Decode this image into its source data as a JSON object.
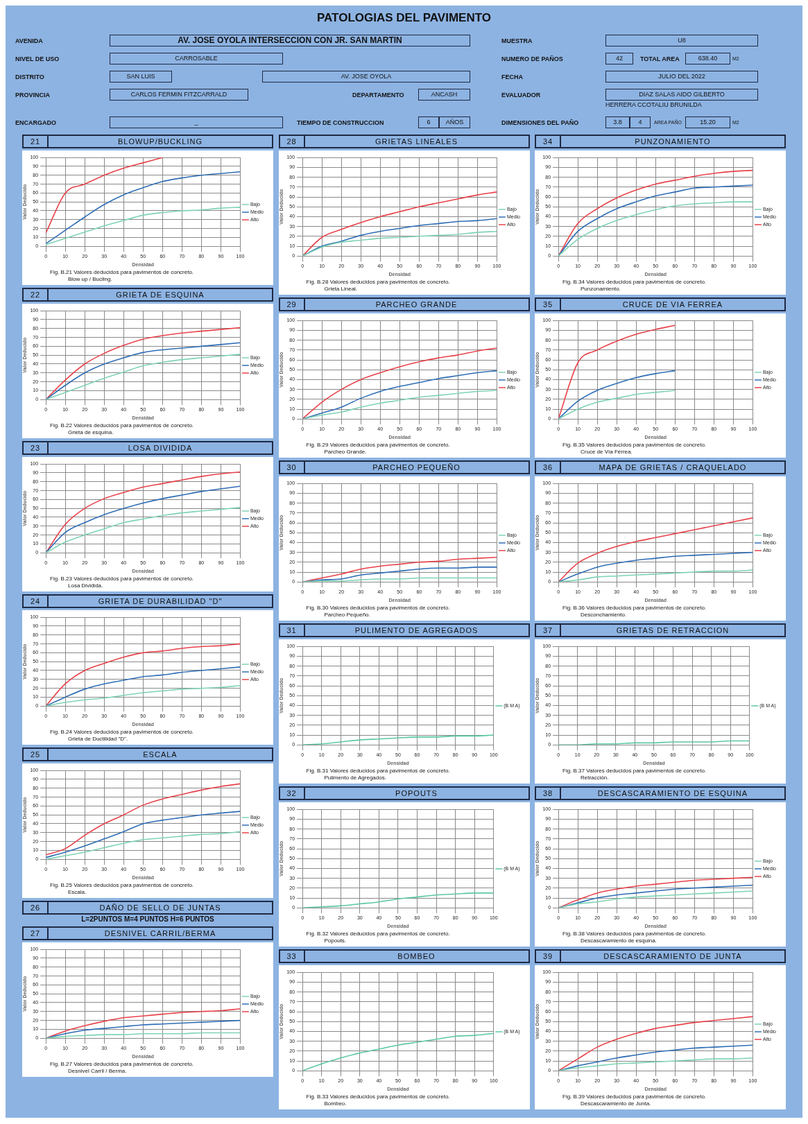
{
  "chart_data": [
    {
      "type": "other",
      "title": "PATOLOGIAS DEL PAVIMENTO",
      "annotations": [
        "AVENIDA",
        "AV. JOSE OYOLA INTERSECCION CON JR. SAN MARTIN",
        "MUESTRA",
        "U8",
        "NIVEL DE USO",
        "CARROSABLE",
        "NUMERO DE PAÑOS",
        "42",
        "TOTAL AREA",
        "638.40",
        "M2",
        "DISTRITO",
        "SAN LUIS",
        "AV. JOSE OYOLA",
        "FECHA",
        "JULIO DEL 2022",
        "PROVINCIA",
        "CARLOS FERMIN FITZCARRALD",
        "DEPARTAMENTO",
        "ANCASH",
        "EVALUADOR",
        "DIAZ SALAS AIDO GILBERTO",
        "HERRERA CCOTALIU BRUNILDA",
        "ENCARGADO",
        "_",
        "TIEMPO DE CONSTRUCCION",
        "6",
        "AÑOS",
        "DIMENSIONES DEL PAÑO",
        "3.8",
        "4",
        "AREA PAÑO",
        "15.20",
        "M2"
      ]
    },
    {
      "type": "line",
      "subtitle": "21",
      "title": "BLOWUP/BUCKLING",
      "xlabel": "Densidad",
      "ylabel": "Valor Deducido",
      "x": [
        0,
        10,
        20,
        30,
        40,
        50,
        60,
        70,
        80,
        90,
        100
      ],
      "xlim": [
        0,
        100
      ],
      "xticks": [
        0,
        10,
        20,
        30,
        40,
        50,
        60,
        70,
        80,
        90,
        100
      ],
      "ylim": [
        0,
        100
      ],
      "yticks": [
        0,
        10,
        20,
        30,
        40,
        50,
        60,
        70,
        80,
        90,
        100
      ],
      "grid": true,
      "legend": "right",
      "annotations": [
        "Fig. B.21 Valores deducidos para pavimentos de concreto.",
        "Blow up / Bucling."
      ],
      "series": [
        {
          "name": "Bajo",
          "color": "#7fd3b4",
          "values": [
            2,
            9,
            16,
            23,
            29,
            35,
            38,
            40,
            41,
            43,
            44
          ]
        },
        {
          "name": "Medio",
          "color": "#2f6eb5",
          "values": [
            3,
            18,
            33,
            47,
            58,
            66,
            73,
            77,
            80,
            82,
            84
          ]
        },
        {
          "name": "Alto",
          "color": "#e8424a",
          "values": [
            15,
            60,
            70,
            80,
            88,
            94,
            100,
            null,
            null,
            null,
            null
          ]
        }
      ]
    },
    {
      "type": "line",
      "subtitle": "22",
      "title": "GRIETA DE ESQUINA",
      "xlabel": "Densidad",
      "ylabel": "Valor Deducido",
      "x": [
        0,
        10,
        20,
        30,
        40,
        50,
        60,
        70,
        80,
        90,
        100
      ],
      "xlim": [
        0,
        100
      ],
      "xticks": [
        0,
        10,
        20,
        30,
        40,
        50,
        60,
        70,
        80,
        90,
        100
      ],
      "ylim": [
        0,
        100
      ],
      "yticks": [
        0,
        10,
        20,
        30,
        40,
        50,
        60,
        70,
        80,
        90,
        100
      ],
      "grid": true,
      "legend": "right",
      "annotations": [
        "Fig. B.22 Valores deducidos para pavimentos de concreto.",
        "Grieta de esquina."
      ],
      "series": [
        {
          "name": "Bajo",
          "color": "#7fd3b4",
          "values": [
            0,
            8,
            16,
            24,
            31,
            38,
            42,
            45,
            47,
            49,
            51
          ]
        },
        {
          "name": "Medio",
          "color": "#2f6eb5",
          "values": [
            0,
            16,
            30,
            40,
            47,
            53,
            56,
            58,
            60,
            62,
            64
          ]
        },
        {
          "name": "Alto",
          "color": "#e8424a",
          "values": [
            0,
            22,
            40,
            52,
            61,
            68,
            72,
            75,
            77,
            79,
            81
          ]
        }
      ]
    },
    {
      "type": "line",
      "subtitle": "23",
      "title": "LOSA DIVIDIDA",
      "xlabel": "Densidad",
      "ylabel": "Valor Deducido",
      "x": [
        0,
        10,
        20,
        30,
        40,
        50,
        60,
        70,
        80,
        90,
        100
      ],
      "xlim": [
        0,
        100
      ],
      "xticks": [
        0,
        10,
        20,
        30,
        40,
        50,
        60,
        70,
        80,
        90,
        100
      ],
      "ylim": [
        0,
        100
      ],
      "yticks": [
        0,
        10,
        20,
        30,
        40,
        50,
        60,
        70,
        80,
        90,
        100
      ],
      "grid": true,
      "legend": "right",
      "annotations": [
        "Fig. B.23 Valores deducidos para pavimentos de concreto.",
        "Losa Dividida."
      ],
      "series": [
        {
          "name": "Bajo",
          "color": "#7fd3b4",
          "values": [
            0,
            12,
            20,
            27,
            34,
            38,
            42,
            45,
            47,
            49,
            51
          ]
        },
        {
          "name": "Medio",
          "color": "#2f6eb5",
          "values": [
            0,
            23,
            34,
            43,
            50,
            56,
            61,
            65,
            69,
            72,
            75
          ]
        },
        {
          "name": "Alto",
          "color": "#e8424a",
          "values": [
            0,
            32,
            50,
            61,
            68,
            74,
            78,
            82,
            86,
            89,
            91
          ]
        }
      ]
    },
    {
      "type": "line",
      "subtitle": "24",
      "title": "GRIETA DE DURABILIDAD \"D\"",
      "xlabel": "Densidad",
      "ylabel": "Valor Deducido",
      "x": [
        0,
        10,
        20,
        30,
        40,
        50,
        60,
        70,
        80,
        90,
        100
      ],
      "xlim": [
        0,
        100
      ],
      "xticks": [
        0,
        10,
        20,
        30,
        40,
        50,
        60,
        70,
        80,
        90,
        100
      ],
      "ylim": [
        0,
        100
      ],
      "yticks": [
        0,
        10,
        20,
        30,
        40,
        50,
        60,
        70,
        80,
        90,
        100
      ],
      "grid": true,
      "legend": "right",
      "annotations": [
        "Fig. B.24 Valores deducidos para pavimentos de concreto.",
        "Grieta de Ductilidad \"D\"."
      ],
      "series": [
        {
          "name": "Bajo",
          "color": "#7fd3b4",
          "values": [
            0,
            4,
            7,
            9,
            12,
            15,
            17,
            19,
            20,
            21,
            23
          ]
        },
        {
          "name": "Medio",
          "color": "#2f6eb5",
          "values": [
            0,
            10,
            19,
            25,
            29,
            33,
            35,
            38,
            40,
            42,
            44
          ]
        },
        {
          "name": "Alto",
          "color": "#e8424a",
          "values": [
            0,
            25,
            40,
            48,
            55,
            60,
            62,
            65,
            67,
            68,
            70
          ]
        }
      ]
    },
    {
      "type": "line",
      "subtitle": "25",
      "title": "ESCALA",
      "xlabel": "Densidad",
      "ylabel": "Valor Deducido",
      "x": [
        0,
        10,
        20,
        30,
        40,
        50,
        60,
        70,
        80,
        90,
        100
      ],
      "xlim": [
        0,
        100
      ],
      "xticks": [
        0,
        10,
        20,
        30,
        40,
        50,
        60,
        70,
        80,
        90,
        100
      ],
      "ylim": [
        0,
        100
      ],
      "yticks": [
        0,
        10,
        20,
        30,
        40,
        50,
        60,
        70,
        80,
        90,
        100
      ],
      "grid": true,
      "legend": "right",
      "annotations": [
        "Fig. B.25 Valores deducidos para pavimentos de concreto.",
        "Escala."
      ],
      "series": [
        {
          "name": "Bajo",
          "color": "#7fd3b4",
          "values": [
            0,
            4,
            8,
            13,
            18,
            22,
            24,
            26,
            28,
            29,
            31
          ]
        },
        {
          "name": "Medio",
          "color": "#2f6eb5",
          "values": [
            2,
            8,
            15,
            23,
            31,
            40,
            44,
            47,
            50,
            52,
            54
          ]
        },
        {
          "name": "Alto",
          "color": "#e8424a",
          "values": [
            5,
            12,
            27,
            40,
            50,
            61,
            68,
            73,
            78,
            82,
            85
          ]
        }
      ]
    },
    {
      "type": "other",
      "subtitle": "26",
      "title": "DAÑO DE SELLO DE JUNTAS",
      "annotations": [
        "L=2PUNTOS  M=4 PUNTOS H=6 PUNTOS"
      ]
    },
    {
      "type": "line",
      "subtitle": "27",
      "title": "DESNIVEL CARRIL/BERMA",
      "xlabel": "Densidad",
      "ylabel": "Valor Deducido",
      "x": [
        0,
        10,
        20,
        30,
        40,
        50,
        60,
        70,
        80,
        90,
        100
      ],
      "xlim": [
        0,
        100
      ],
      "xticks": [
        0,
        10,
        20,
        30,
        40,
        50,
        60,
        70,
        80,
        90,
        100
      ],
      "ylim": [
        0,
        100
      ],
      "yticks": [
        0,
        10,
        20,
        30,
        40,
        50,
        60,
        70,
        80,
        90,
        100
      ],
      "grid": true,
      "legend": "right",
      "annotations": [
        "Fig. B.27 Valores deducidos para pavimentos de concreto.",
        "Desnivel Carril / Berma."
      ],
      "series": [
        {
          "name": "Bajo",
          "color": "#7fd3b4",
          "values": [
            0,
            2,
            3,
            4,
            4,
            5,
            5,
            5,
            6,
            6,
            6
          ]
        },
        {
          "name": "Medio",
          "color": "#2f6eb5",
          "values": [
            0,
            5,
            9,
            11,
            13,
            15,
            16,
            17,
            18,
            19,
            20
          ]
        },
        {
          "name": "Alto",
          "color": "#e8424a",
          "values": [
            0,
            8,
            14,
            19,
            23,
            25,
            27,
            29,
            30,
            31,
            33
          ]
        }
      ]
    },
    {
      "type": "line",
      "subtitle": "28",
      "title": "GRIETAS LINEALES",
      "xlabel": "Densidad",
      "ylabel": "Valor Deducido",
      "x": [
        0,
        10,
        20,
        30,
        40,
        50,
        60,
        70,
        80,
        90,
        100
      ],
      "xlim": [
        0,
        100
      ],
      "xticks": [
        0,
        10,
        20,
        30,
        40,
        50,
        60,
        70,
        80,
        90,
        100
      ],
      "ylim": [
        0,
        100
      ],
      "yticks": [
        0,
        10,
        20,
        30,
        40,
        50,
        60,
        70,
        80,
        90,
        100
      ],
      "grid": true,
      "legend": "right",
      "annotations": [
        "Fig. B.28 Valores deducidos para pavimentos de concreto.",
        "Grieta Lineal."
      ],
      "series": [
        {
          "name": "Bajo",
          "color": "#7fd3b4",
          "values": [
            0,
            9,
            14,
            16,
            18,
            19,
            20,
            21,
            22,
            24,
            25
          ]
        },
        {
          "name": "Medio",
          "color": "#2f6eb5",
          "values": [
            0,
            10,
            15,
            21,
            25,
            28,
            31,
            33,
            35,
            36,
            38
          ]
        },
        {
          "name": "Alto",
          "color": "#e8424a",
          "values": [
            0,
            19,
            27,
            34,
            40,
            45,
            50,
            54,
            58,
            62,
            65
          ]
        }
      ]
    },
    {
      "type": "line",
      "subtitle": "29",
      "title": "PARCHEO GRANDE",
      "xlabel": "Densidad",
      "ylabel": "Valor Deducido",
      "x": [
        0,
        10,
        20,
        30,
        40,
        50,
        60,
        70,
        80,
        90,
        100
      ],
      "xlim": [
        0,
        100
      ],
      "xticks": [
        0,
        10,
        20,
        30,
        40,
        50,
        60,
        70,
        80,
        90,
        100
      ],
      "ylim": [
        0,
        100
      ],
      "yticks": [
        0,
        10,
        20,
        30,
        40,
        50,
        60,
        70,
        80,
        90,
        100
      ],
      "grid": true,
      "legend": "right",
      "annotations": [
        "Fig. B.29 Valores deducidos para pavimentos de concreto.",
        "Parcheo Grande."
      ],
      "series": [
        {
          "name": "Bajo",
          "color": "#7fd3b4",
          "values": [
            0,
            4,
            7,
            12,
            16,
            19,
            22,
            24,
            26,
            28,
            29
          ]
        },
        {
          "name": "Medio",
          "color": "#2f6eb5",
          "values": [
            0,
            6,
            12,
            21,
            28,
            33,
            37,
            41,
            44,
            47,
            49
          ]
        },
        {
          "name": "Alto",
          "color": "#e8424a",
          "values": [
            0,
            17,
            30,
            40,
            47,
            53,
            58,
            62,
            65,
            69,
            72
          ]
        }
      ]
    },
    {
      "type": "line",
      "subtitle": "30",
      "title": "PARCHEO PEQUEÑO",
      "xlabel": "Densidad",
      "ylabel": "Valor Deducido",
      "x": [
        0,
        10,
        20,
        30,
        40,
        50,
        60,
        70,
        80,
        90,
        100
      ],
      "xlim": [
        0,
        100
      ],
      "xticks": [
        0,
        10,
        20,
        30,
        40,
        50,
        60,
        70,
        80,
        90,
        100
      ],
      "ylim": [
        0,
        100
      ],
      "yticks": [
        0,
        10,
        20,
        30,
        40,
        50,
        60,
        70,
        80,
        90,
        100
      ],
      "grid": true,
      "legend": "right",
      "annotations": [
        "Fig. B.30 Valores deducidos para pavimentos de concreto.",
        "Parcheo Pequeño."
      ],
      "series": [
        {
          "name": "Bajo",
          "color": "#7fd3b4",
          "values": [
            0,
            1,
            1,
            2,
            3,
            3,
            4,
            4,
            4,
            4,
            4
          ]
        },
        {
          "name": "Medio",
          "color": "#2f6eb5",
          "values": [
            0,
            2,
            3,
            7,
            9,
            11,
            13,
            14,
            14,
            15,
            15
          ]
        },
        {
          "name": "Alto",
          "color": "#e8424a",
          "values": [
            0,
            4,
            8,
            13,
            16,
            18,
            20,
            21,
            23,
            24,
            25
          ]
        }
      ]
    },
    {
      "type": "line",
      "subtitle": "31",
      "title": "PULIMENTO DE AGREGADOS",
      "xlabel": "Densidad",
      "ylabel": "Valor Deducido",
      "x": [
        0,
        10,
        20,
        30,
        40,
        50,
        60,
        70,
        80,
        90,
        100
      ],
      "xlim": [
        0,
        100
      ],
      "xticks": [
        0,
        10,
        20,
        30,
        40,
        50,
        60,
        70,
        80,
        90,
        100
      ],
      "ylim": [
        0,
        100
      ],
      "yticks": [
        0,
        10,
        20,
        30,
        40,
        50,
        60,
        70,
        80,
        90,
        100
      ],
      "grid": true,
      "legend": "right",
      "annotations": [
        "Fig. B.31 Valores deducidos para pavimentos de concreto.",
        "Pulimento de Agregados."
      ],
      "series": [
        {
          "name": "(B M A)",
          "color": "#5cc8a0",
          "values": [
            0,
            1,
            3,
            5,
            6,
            7,
            8,
            8,
            9,
            9,
            10
          ]
        }
      ]
    },
    {
      "type": "line",
      "subtitle": "32",
      "title": "POPOUTS",
      "xlabel": "Densidad",
      "ylabel": "Valor Deducido",
      "x": [
        0,
        10,
        20,
        30,
        40,
        50,
        60,
        70,
        80,
        90,
        100
      ],
      "xlim": [
        0,
        100
      ],
      "xticks": [
        0,
        10,
        20,
        30,
        40,
        50,
        60,
        70,
        80,
        90,
        100
      ],
      "ylim": [
        0,
        100
      ],
      "yticks": [
        0,
        10,
        20,
        30,
        40,
        50,
        60,
        70,
        80,
        90,
        100
      ],
      "grid": true,
      "legend": "right",
      "annotations": [
        "Fig. B.32 Valores deducidos para pavimentos de concreto.",
        "Popouts."
      ],
      "series": [
        {
          "name": "(B M A)",
          "color": "#5cc8a0",
          "values": [
            0,
            1,
            2,
            4,
            6,
            9,
            11,
            13,
            14,
            15,
            15
          ]
        }
      ]
    },
    {
      "type": "line",
      "subtitle": "33",
      "title": "BOMBEO",
      "xlabel": "Densidad",
      "ylabel": "Valor Deducido",
      "x": [
        0,
        10,
        20,
        30,
        40,
        50,
        60,
        70,
        80,
        90,
        100
      ],
      "xlim": [
        0,
        100
      ],
      "xticks": [
        0,
        10,
        20,
        30,
        40,
        50,
        60,
        70,
        80,
        90,
        100
      ],
      "ylim": [
        0,
        100
      ],
      "yticks": [
        0,
        10,
        20,
        30,
        40,
        50,
        60,
        70,
        80,
        90,
        100
      ],
      "grid": true,
      "legend": "right",
      "annotations": [
        "Fig. B.33 Valores deducidos para pavimentos de concreto.",
        "Bombeo."
      ],
      "series": [
        {
          "name": "(B M A)",
          "color": "#5cc8a0",
          "values": [
            0,
            7,
            13,
            18,
            22,
            26,
            29,
            32,
            35,
            36,
            38
          ]
        }
      ]
    },
    {
      "type": "line",
      "subtitle": "34",
      "title": "PUNZONAMIENTO",
      "xlabel": "Densidad",
      "ylabel": "Valor Deducido",
      "x": [
        0,
        10,
        20,
        30,
        40,
        50,
        60,
        70,
        80,
        90,
        100
      ],
      "xlim": [
        0,
        100
      ],
      "xticks": [
        0,
        10,
        20,
        30,
        40,
        50,
        60,
        70,
        80,
        90,
        100
      ],
      "ylim": [
        0,
        100
      ],
      "yticks": [
        0,
        10,
        20,
        30,
        40,
        50,
        60,
        70,
        80,
        90,
        100
      ],
      "grid": true,
      "legend": "right",
      "annotations": [
        "Fig. B.34 Valores deducidos para pavimentos de concreto.",
        "Punzonamiento."
      ],
      "series": [
        {
          "name": "Bajo",
          "color": "#7fd3b4",
          "values": [
            0,
            17,
            28,
            36,
            42,
            47,
            51,
            53,
            54,
            55,
            55
          ]
        },
        {
          "name": "Medio",
          "color": "#2f6eb5",
          "values": [
            0,
            25,
            38,
            48,
            55,
            61,
            65,
            69,
            70,
            71,
            72
          ]
        },
        {
          "name": "Alto",
          "color": "#e8424a",
          "values": [
            0,
            33,
            48,
            59,
            67,
            73,
            77,
            81,
            84,
            86,
            87
          ]
        }
      ]
    },
    {
      "type": "line",
      "subtitle": "35",
      "title": "CRUCE DE VIA FERREA",
      "xlabel": "Densidad",
      "ylabel": "Valor Deducido",
      "x": [
        0,
        10,
        20,
        30,
        40,
        50,
        60
      ],
      "xlim": [
        0,
        100
      ],
      "xticks": [
        0,
        10,
        20,
        30,
        40,
        50,
        60,
        70,
        80,
        90,
        100
      ],
      "ylim": [
        0,
        100
      ],
      "yticks": [
        0,
        10,
        20,
        30,
        40,
        50,
        60,
        70,
        80,
        90,
        100
      ],
      "grid": true,
      "legend": "right",
      "annotations": [
        "Fig. B.35 Valores deducidos para pavimentos de concreto.",
        "Cruce de Vía Férrea."
      ],
      "series": [
        {
          "name": "Bajo",
          "color": "#7fd3b4",
          "values": [
            0,
            10,
            17,
            21,
            25,
            27,
            29
          ]
        },
        {
          "name": "Medio",
          "color": "#2f6eb5",
          "values": [
            0,
            18,
            29,
            36,
            42,
            46,
            49
          ]
        },
        {
          "name": "Alto",
          "color": "#e8424a",
          "values": [
            0,
            57,
            70,
            79,
            86,
            91,
            95
          ]
        }
      ]
    },
    {
      "type": "line",
      "subtitle": "36",
      "title": "MAPA DE GRIETAS / CRAQUELADO",
      "xlabel": "Densidad",
      "ylabel": "Valor Deducido",
      "x": [
        0,
        10,
        20,
        30,
        40,
        50,
        60,
        70,
        80,
        90,
        100
      ],
      "xlim": [
        0,
        100
      ],
      "xticks": [
        0,
        10,
        20,
        30,
        40,
        50,
        60,
        70,
        80,
        90,
        100
      ],
      "ylim": [
        0,
        100
      ],
      "yticks": [
        0,
        10,
        20,
        30,
        40,
        50,
        60,
        70,
        80,
        90,
        100
      ],
      "grid": true,
      "legend": "right",
      "annotations": [
        "Fig. B.36 Valores deducidos para pavimentos de concreto.",
        "Desconchamiento."
      ],
      "series": [
        {
          "name": "Bajo",
          "color": "#7fd3b4",
          "values": [
            0,
            2,
            5,
            6,
            7,
            8,
            9,
            10,
            11,
            11,
            12
          ]
        },
        {
          "name": "Medio",
          "color": "#2f6eb5",
          "values": [
            0,
            8,
            15,
            19,
            22,
            24,
            26,
            27,
            28,
            29,
            30
          ]
        },
        {
          "name": "Alto",
          "color": "#e8424a",
          "values": [
            0,
            19,
            29,
            36,
            41,
            45,
            49,
            53,
            57,
            61,
            65
          ]
        }
      ]
    },
    {
      "type": "line",
      "subtitle": "37",
      "title": "GRIETAS DE RETRACCION",
      "xlabel": "Densidad",
      "ylabel": "Valor Deducido",
      "x": [
        0,
        10,
        20,
        30,
        40,
        50,
        60,
        70,
        80,
        90,
        100
      ],
      "xlim": [
        0,
        100
      ],
      "xticks": [
        0,
        10,
        20,
        30,
        40,
        50,
        60,
        70,
        80,
        90,
        100
      ],
      "ylim": [
        0,
        100
      ],
      "yticks": [
        0,
        10,
        20,
        30,
        40,
        50,
        60,
        70,
        80,
        90,
        100
      ],
      "grid": true,
      "legend": "right",
      "annotations": [
        "Fig. B.37 Valores deducidos para pavimentos de concreto.",
        "Retracción."
      ],
      "series": [
        {
          "name": "(B M A)",
          "color": "#5cc8a0",
          "values": [
            0,
            0,
            1,
            1,
            2,
            2,
            3,
            3,
            3,
            4,
            4
          ]
        }
      ]
    },
    {
      "type": "line",
      "subtitle": "38",
      "title": "DESCASCARAMIENTO DE ESQUINA",
      "xlabel": "Densidad",
      "ylabel": "Valor Deducido",
      "x": [
        0,
        10,
        20,
        30,
        40,
        50,
        60,
        70,
        80,
        90,
        100
      ],
      "xlim": [
        0,
        100
      ],
      "xticks": [
        0,
        10,
        20,
        30,
        40,
        50,
        60,
        70,
        80,
        90,
        100
      ],
      "ylim": [
        0,
        100
      ],
      "yticks": [
        0,
        10,
        20,
        30,
        40,
        50,
        60,
        70,
        80,
        90,
        100
      ],
      "grid": true,
      "legend": "right",
      "annotations": [
        "Fig. B.38 Valores deducidos para pavimentos de concreto.",
        "Descascaramiento de esquina."
      ],
      "series": [
        {
          "name": "Bajo",
          "color": "#7fd3b4",
          "values": [
            0,
            4,
            6,
            9,
            11,
            12,
            13,
            14,
            15,
            16,
            17
          ]
        },
        {
          "name": "Medio",
          "color": "#2f6eb5",
          "values": [
            0,
            5,
            10,
            13,
            15,
            17,
            19,
            20,
            21,
            22,
            23
          ]
        },
        {
          "name": "Alto",
          "color": "#e8424a",
          "values": [
            0,
            8,
            15,
            19,
            22,
            24,
            26,
            28,
            29,
            30,
            31
          ]
        }
      ]
    },
    {
      "type": "line",
      "subtitle": "39",
      "title": "DESCASCARAMIENTO DE JUNTA",
      "xlabel": "Densidad",
      "ylabel": "Valor Deducido",
      "x": [
        0,
        10,
        20,
        30,
        40,
        50,
        60,
        70,
        80,
        90,
        100
      ],
      "xlim": [
        0,
        100
      ],
      "xticks": [
        0,
        10,
        20,
        30,
        40,
        50,
        60,
        70,
        80,
        90,
        100
      ],
      "ylim": [
        0,
        100
      ],
      "yticks": [
        0,
        10,
        20,
        30,
        40,
        50,
        60,
        70,
        80,
        90,
        100
      ],
      "grid": true,
      "legend": "right",
      "annotations": [
        "Fig. B.39 Valores deducidos para pavimentos de concreto.",
        "Descascaramiento de Junta."
      ],
      "series": [
        {
          "name": "Bajo",
          "color": "#7fd3b4",
          "values": [
            0,
            3,
            5,
            7,
            8,
            9,
            10,
            11,
            12,
            12,
            13
          ]
        },
        {
          "name": "Medio",
          "color": "#2f6eb5",
          "values": [
            0,
            5,
            9,
            13,
            16,
            19,
            21,
            23,
            24,
            25,
            26
          ]
        },
        {
          "name": "Alto",
          "color": "#e8424a",
          "values": [
            0,
            12,
            24,
            32,
            38,
            43,
            46,
            49,
            51,
            53,
            55
          ]
        }
      ]
    }
  ]
}
